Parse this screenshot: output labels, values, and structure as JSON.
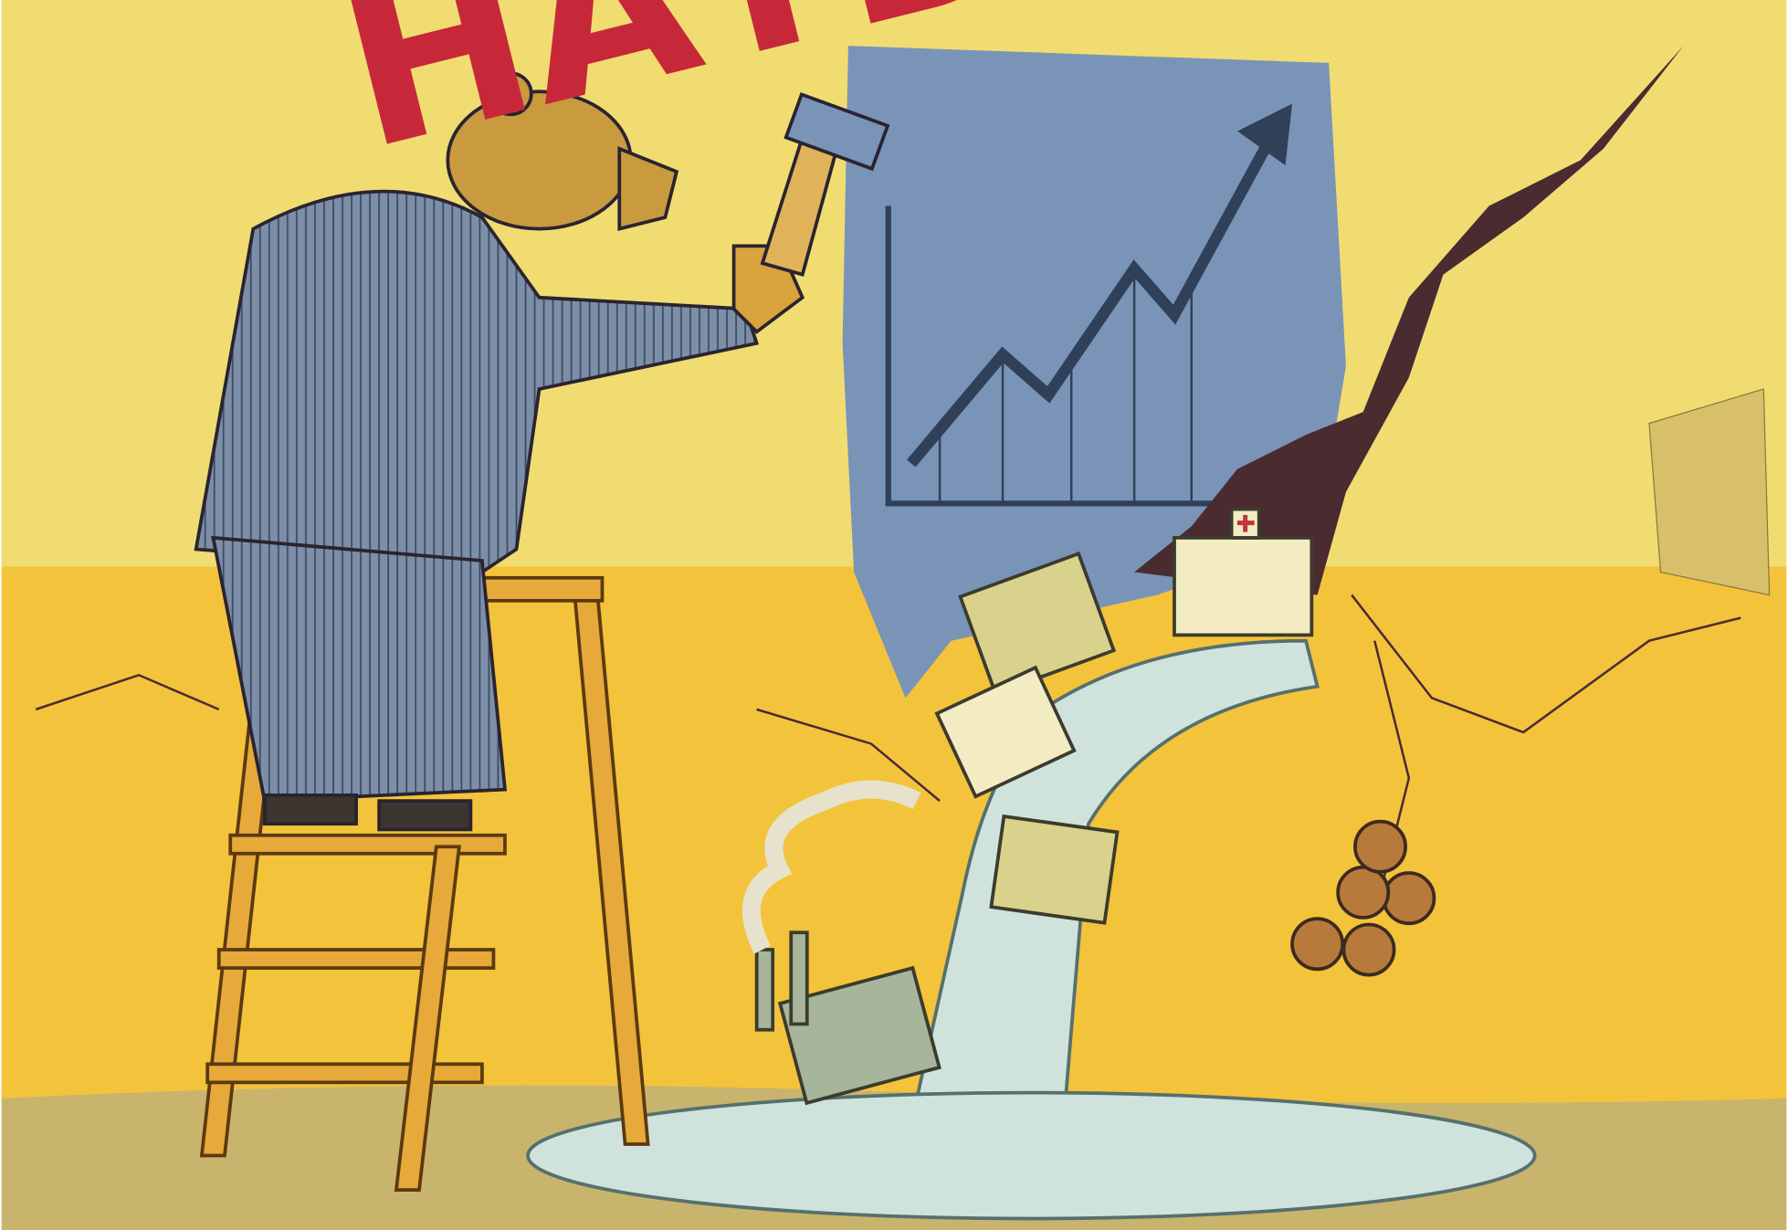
{
  "illustration": {
    "headline": "НАТБ"
  }
}
